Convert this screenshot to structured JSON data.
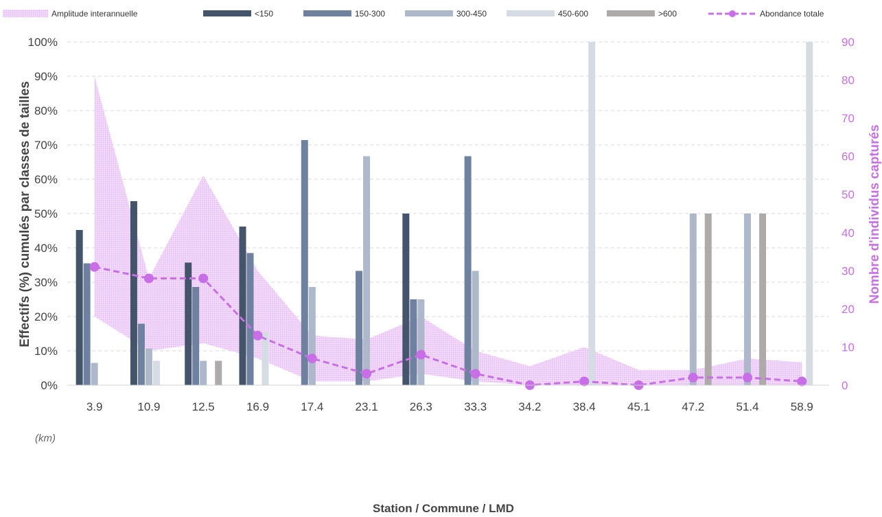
{
  "chart_data": {
    "type": "bar",
    "xlabel": "Station / Commune / LMD",
    "x_unit": "(km)",
    "ylabel": "Effectifs (%) cumulés par classes de tailles",
    "ylabel_right": "Nombre d'individus capturés",
    "ylim": [
      0,
      100
    ],
    "ylim_right": [
      0,
      90
    ],
    "y_ticks": [
      "0%",
      "10%",
      "20%",
      "30%",
      "40%",
      "50%",
      "60%",
      "70%",
      "80%",
      "90%",
      "100%"
    ],
    "y_ticks_right": [
      "0",
      "10",
      "20",
      "30",
      "40",
      "50",
      "60",
      "70",
      "80",
      "90"
    ],
    "grid": true,
    "legend_position": "top",
    "categories": [
      "3.9",
      "10.9",
      "12.5",
      "16.9",
      "17.4",
      "23.1",
      "26.3",
      "33.3",
      "34.2",
      "38.4",
      "45.1",
      "47.2",
      "51.4",
      "58.9"
    ],
    "series": [
      {
        "name": "<150",
        "kind": "bar",
        "color": "#44546a",
        "values": [
          45.2,
          53.6,
          35.7,
          46.2,
          0,
          0,
          50,
          0,
          0,
          0,
          0,
          0,
          0,
          0
        ]
      },
      {
        "name": "150-300",
        "kind": "bar",
        "color": "#6e82a0",
        "values": [
          35.5,
          17.9,
          28.6,
          38.5,
          71.4,
          33.3,
          25,
          66.7,
          0,
          0,
          0,
          0,
          0,
          0
        ]
      },
      {
        "name": "300-450",
        "kind": "bar",
        "color": "#adb9ca",
        "values": [
          6.5,
          10.7,
          7.1,
          0,
          28.6,
          66.7,
          25,
          33.3,
          0,
          0,
          0,
          50,
          50,
          0
        ]
      },
      {
        "name": "450-600",
        "kind": "bar",
        "color": "#d6dce4",
        "values": [
          0,
          7.1,
          0,
          15.4,
          0,
          0,
          0,
          0,
          0,
          100,
          0,
          0,
          0,
          100
        ]
      },
      {
        "name": ">600",
        "kind": "bar",
        "color": "#aeaaaa",
        "values": [
          0,
          0,
          7.1,
          0,
          0,
          0,
          0,
          0,
          0,
          0,
          0,
          50,
          50,
          0
        ]
      },
      {
        "name": "Abondance totale",
        "kind": "line",
        "axis": "right",
        "color": "#c86ee6",
        "values": [
          31,
          28,
          28,
          13,
          7,
          3,
          8,
          3,
          0,
          1,
          0,
          2,
          2,
          1
        ]
      },
      {
        "name": "Amplitude interannuelle",
        "kind": "band",
        "axis": "right",
        "color": "#f0d2fa",
        "upper": [
          81,
          28,
          55,
          30,
          13,
          12,
          18,
          9,
          5,
          10,
          4,
          4,
          7,
          6
        ],
        "lower": [
          18,
          9,
          11,
          7,
          1,
          1,
          3,
          1,
          0,
          0,
          0,
          0,
          0,
          0
        ]
      }
    ]
  }
}
